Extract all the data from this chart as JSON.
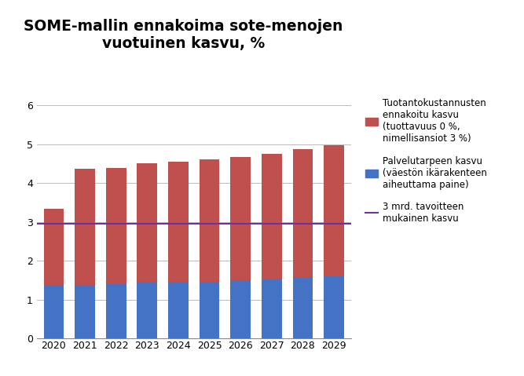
{
  "title": "SOME-mallin ennakoima sote-menojen\nvuotuinen kasvu, %",
  "years": [
    2020,
    2021,
    2022,
    2023,
    2024,
    2025,
    2026,
    2027,
    2028,
    2029
  ],
  "blue_values": [
    1.37,
    1.37,
    1.4,
    1.45,
    1.46,
    1.46,
    1.5,
    1.51,
    1.57,
    1.6
  ],
  "red_values": [
    1.97,
    3.0,
    2.99,
    3.05,
    3.09,
    3.14,
    3.17,
    3.24,
    3.3,
    3.38
  ],
  "horizontal_line_y": 2.95,
  "blue_color": "#4472C4",
  "red_color": "#C0504D",
  "line_color": "#7030A0",
  "ylim": [
    0,
    6
  ],
  "yticks": [
    0,
    1,
    2,
    3,
    4,
    5,
    6
  ],
  "legend_label1": "Tuotantokustannusten\nennakoitu kasvu\n(tuottavuus 0 %,\nnimellisansiot 3 %)",
  "legend_label2": "Palvelutarpeen kasvu\n(väestön ikärakenteen\naiheuttama paine)",
  "legend_label3": "3 mrd. tavoitteen\nmukainen kasvu",
  "background_color": "#FFFFFF",
  "bar_width": 0.65,
  "title_fontsize": 13.5,
  "tick_fontsize": 9,
  "legend_fontsize": 8.5
}
